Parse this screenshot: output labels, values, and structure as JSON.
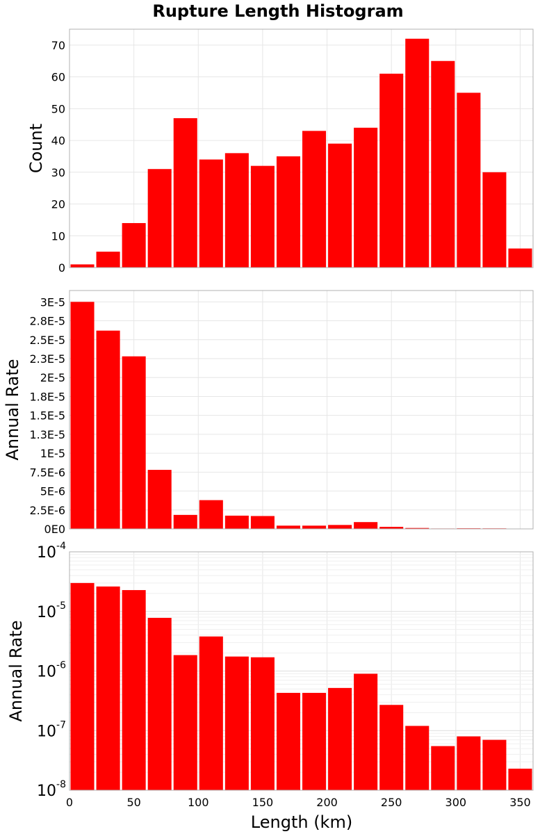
{
  "chart_data": {
    "type": "bar",
    "title": "Rupture Length Histogram",
    "xlabel": "Length (km)",
    "xlim": [
      0,
      360
    ],
    "bin_width": 20,
    "x": [
      10,
      30,
      50,
      70,
      90,
      110,
      130,
      150,
      170,
      190,
      210,
      230,
      250,
      270,
      290,
      310,
      330,
      350
    ],
    "x_ticks": [
      0,
      50,
      100,
      150,
      200,
      250,
      300,
      350
    ],
    "panels": [
      {
        "id": "count",
        "scale": "linear",
        "ylabel": "Count",
        "ylim": [
          0,
          75
        ],
        "y_ticks": [
          0,
          10,
          20,
          30,
          40,
          50,
          60,
          70
        ],
        "y_tick_labels": [
          "0",
          "10",
          "20",
          "30",
          "40",
          "50",
          "60",
          "70"
        ],
        "values": [
          1,
          5,
          14,
          31,
          47,
          34,
          36,
          32,
          35,
          43,
          39,
          44,
          61,
          72,
          65,
          55,
          30,
          6
        ]
      },
      {
        "id": "rate-linear",
        "scale": "linear",
        "ylabel": "Annual Rate",
        "ylim": [
          0,
          3.15e-05
        ],
        "y_ticks": [
          0,
          2.5e-06,
          5e-06,
          7.5e-06,
          1e-05,
          1.25e-05,
          1.5e-05,
          1.75e-05,
          2e-05,
          2.25e-05,
          2.5e-05,
          2.75e-05,
          3e-05
        ],
        "y_tick_labels": [
          "0E0",
          "2.5E-6",
          "5E-6",
          "7.5E-6",
          "1E-5",
          "1.3E-5",
          "1.5E-5",
          "1.8E-5",
          "2E-5",
          "2.3E-5",
          "2.5E-5",
          "2.8E-5",
          "3E-5"
        ],
        "values": [
          3e-05,
          2.62e-05,
          2.28e-05,
          7.8e-06,
          1.85e-06,
          3.8e-06,
          1.75e-06,
          1.7e-06,
          4.3e-07,
          4.3e-07,
          5.2e-07,
          9e-07,
          2.7e-07,
          1.2e-07,
          5.5e-08,
          8e-08,
          7e-08,
          2.3e-08
        ]
      },
      {
        "id": "rate-log",
        "scale": "log",
        "ylabel": "Annual Rate",
        "ylim": [
          1e-08,
          0.0001
        ],
        "y_tick_exponents": [
          "-8",
          "-7",
          "-6",
          "-5",
          "-4"
        ],
        "y_tick_base": "10",
        "values": [
          3e-05,
          2.62e-05,
          2.28e-05,
          7.8e-06,
          1.85e-06,
          3.8e-06,
          1.75e-06,
          1.7e-06,
          4.3e-07,
          4.3e-07,
          5.2e-07,
          9e-07,
          2.7e-07,
          1.2e-07,
          5.5e-08,
          8e-08,
          7e-08,
          2.3e-08
        ]
      }
    ],
    "bar_color": "#ff0000",
    "grid": true
  }
}
